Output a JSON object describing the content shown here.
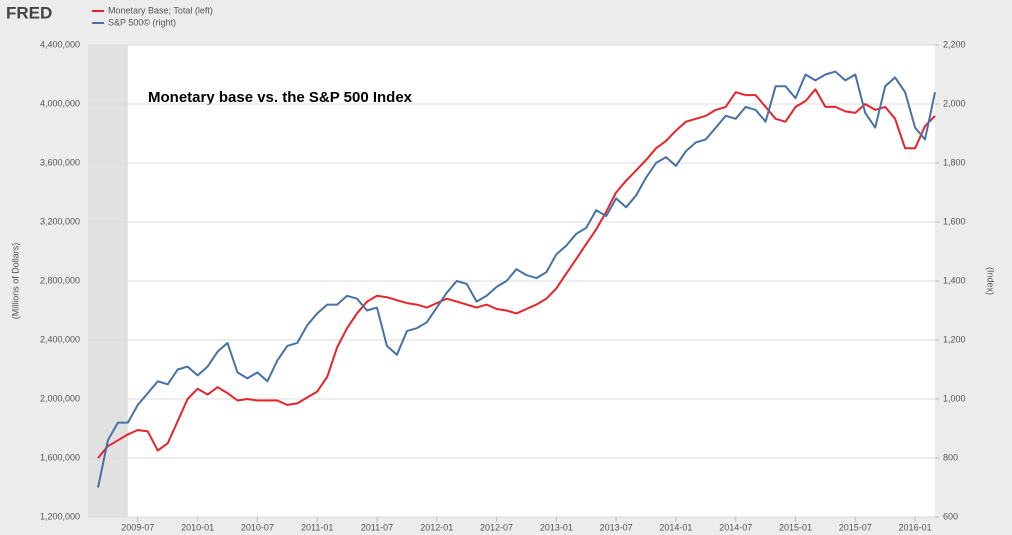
{
  "chart_data": {
    "type": "line",
    "logo": "FRED",
    "title": "Monetary base vs. the S&P 500 Index",
    "ylabel": "(Millions of Dollars)",
    "y2label": "(Index)",
    "x": [
      "2009-03",
      "2009-04",
      "2009-05",
      "2009-06",
      "2009-07",
      "2009-08",
      "2009-09",
      "2009-10",
      "2009-11",
      "2009-12",
      "2010-01",
      "2010-02",
      "2010-03",
      "2010-04",
      "2010-05",
      "2010-06",
      "2010-07",
      "2010-08",
      "2010-09",
      "2010-10",
      "2010-11",
      "2010-12",
      "2011-01",
      "2011-02",
      "2011-03",
      "2011-04",
      "2011-05",
      "2011-06",
      "2011-07",
      "2011-08",
      "2011-09",
      "2011-10",
      "2011-11",
      "2011-12",
      "2012-01",
      "2012-02",
      "2012-03",
      "2012-04",
      "2012-05",
      "2012-06",
      "2012-07",
      "2012-08",
      "2012-09",
      "2012-10",
      "2012-11",
      "2012-12",
      "2013-01",
      "2013-02",
      "2013-03",
      "2013-04",
      "2013-05",
      "2013-06",
      "2013-07",
      "2013-08",
      "2013-09",
      "2013-10",
      "2013-11",
      "2013-12",
      "2014-01",
      "2014-02",
      "2014-03",
      "2014-04",
      "2014-05",
      "2014-06",
      "2014-07",
      "2014-08",
      "2014-09",
      "2014-10",
      "2014-11",
      "2014-12",
      "2015-01",
      "2015-02",
      "2015-03",
      "2015-04",
      "2015-05",
      "2015-06",
      "2015-07",
      "2015-08",
      "2015-09",
      "2015-10",
      "2015-11",
      "2015-12",
      "2016-01",
      "2016-02",
      "2016-03"
    ],
    "series": [
      {
        "name": "Monetary Base; Total (left)",
        "color": "#e8232a",
        "values": [
          1600000,
          1680000,
          1720000,
          1760000,
          1790000,
          1780000,
          1650000,
          1700000,
          1850000,
          2000000,
          2070000,
          2030000,
          2080000,
          2040000,
          1990000,
          2000000,
          1990000,
          1990000,
          1990000,
          1960000,
          1970000,
          2010000,
          2050000,
          2150000,
          2350000,
          2480000,
          2580000,
          2660000,
          2700000,
          2690000,
          2670000,
          2650000,
          2640000,
          2620000,
          2650000,
          2680000,
          2660000,
          2640000,
          2620000,
          2640000,
          2610000,
          2600000,
          2580000,
          2610000,
          2640000,
          2680000,
          2750000,
          2850000,
          2950000,
          3050000,
          3150000,
          3270000,
          3400000,
          3480000,
          3550000,
          3620000,
          3700000,
          3750000,
          3820000,
          3880000,
          3900000,
          3920000,
          3960000,
          3980000,
          4080000,
          4060000,
          4060000,
          3980000,
          3900000,
          3880000,
          3980000,
          4020000,
          4100000,
          3980000,
          3980000,
          3950000,
          3940000,
          4000000,
          3960000,
          3980000,
          3900000,
          3700000,
          3700000,
          3850000,
          3920000
        ]
      },
      {
        "name": "S&P 500© (right)",
        "color": "#4572a7",
        "axis": "y2",
        "values": [
          700,
          860,
          920,
          920,
          980,
          1020,
          1060,
          1050,
          1100,
          1110,
          1080,
          1110,
          1160,
          1190,
          1090,
          1070,
          1090,
          1060,
          1130,
          1180,
          1190,
          1250,
          1290,
          1320,
          1320,
          1350,
          1340,
          1300,
          1310,
          1180,
          1150,
          1230,
          1240,
          1260,
          1310,
          1360,
          1400,
          1390,
          1330,
          1350,
          1380,
          1400,
          1440,
          1420,
          1410,
          1430,
          1490,
          1520,
          1560,
          1580,
          1640,
          1620,
          1680,
          1650,
          1690,
          1750,
          1800,
          1820,
          1790,
          1840,
          1870,
          1880,
          1920,
          1960,
          1950,
          1990,
          1980,
          1940,
          2060,
          2060,
          2020,
          2100,
          2080,
          2100,
          2110,
          2080,
          2100,
          1970,
          1920,
          2060,
          2090,
          2040,
          1920,
          1880,
          2040
        ]
      }
    ],
    "xlim": [
      "2009-02",
      "2016-03"
    ],
    "xticks": [
      "2009-07",
      "2010-01",
      "2010-07",
      "2011-01",
      "2011-07",
      "2012-01",
      "2012-07",
      "2013-01",
      "2013-07",
      "2014-01",
      "2014-07",
      "2015-01",
      "2015-07",
      "2016-01"
    ],
    "ylim": [
      1200000,
      4400000
    ],
    "yticks": [
      {
        "value": 1200000,
        "label": "1,200,000"
      },
      {
        "value": 1600000,
        "label": "1,600,000"
      },
      {
        "value": 2000000,
        "label": "2,000,000"
      },
      {
        "value": 2400000,
        "label": "2,400,000"
      },
      {
        "value": 2800000,
        "label": "2,800,000"
      },
      {
        "value": 3200000,
        "label": "3,200,000"
      },
      {
        "value": 3600000,
        "label": "3,600,000"
      },
      {
        "value": 4000000,
        "label": "4,000,000"
      },
      {
        "value": 4400000,
        "label": "4,400,000"
      }
    ],
    "y2lim": [
      600,
      2200
    ],
    "y2ticks": [
      600,
      800,
      {
        "value": 1000,
        "label": "1,000"
      },
      {
        "value": 1200,
        "label": "1,200"
      },
      {
        "value": 1400,
        "label": "1,400"
      },
      {
        "value": 1600,
        "label": "1,600"
      },
      {
        "value": 1800,
        "label": "1,800"
      },
      {
        "value": 2000,
        "label": "2,000"
      },
      {
        "value": 2200,
        "label": "2,200"
      }
    ],
    "recession": [
      "2009-02",
      "2009-06"
    ],
    "grid": true
  }
}
